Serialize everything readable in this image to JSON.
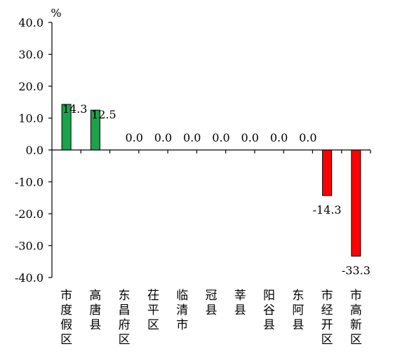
{
  "chart_data": {
    "type": "bar",
    "unit": "%",
    "ylim": [
      -40,
      40
    ],
    "yticks": [
      40,
      30,
      20,
      10,
      0,
      -10,
      -20,
      -30,
      -40
    ],
    "ytick_labels": [
      "40.0",
      "30.0",
      "20.0",
      "10.0",
      "0.0",
      "-10.0",
      "-20.0",
      "-30.0",
      "-40.0"
    ],
    "categories": [
      "市度假区",
      "高唐县",
      "东昌府区",
      "茌平区",
      "临清市",
      "冠县",
      "莘县",
      "阳谷县",
      "东阿县",
      "市经开区",
      "市高新区"
    ],
    "values": [
      14.3,
      12.5,
      0.0,
      0.0,
      0.0,
      0.0,
      0.0,
      0.0,
      0.0,
      -14.3,
      -33.3
    ],
    "value_labels": [
      "14.3",
      "12.5",
      "0.0",
      "0.0",
      "0.0",
      "0.0",
      "0.0",
      "0.0",
      "0.0",
      "-14.3",
      "-33.3"
    ],
    "colors": {
      "positive": "#1aa34a",
      "negative": "#ff0000"
    },
    "grid": false,
    "legend": "none"
  }
}
